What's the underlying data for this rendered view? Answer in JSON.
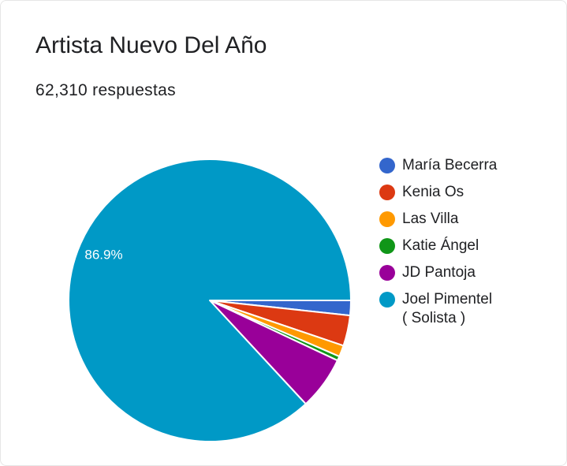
{
  "header": {
    "title": "Artista Nuevo Del Año",
    "responses": "62,310 respuestas"
  },
  "chart_data": {
    "type": "pie",
    "title": "Artista Nuevo Del Año",
    "legend_position": "right",
    "slices": [
      {
        "label": "María Becerra",
        "value": 1.7,
        "color": "#3366cc"
      },
      {
        "label": "Kenia Os",
        "value": 3.5,
        "color": "#dc3912"
      },
      {
        "label": "Las Villa",
        "value": 1.3,
        "color": "#ff9900"
      },
      {
        "label": "Katie Ángel",
        "value": 0.5,
        "color": "#109618"
      },
      {
        "label": "JD Pantoja",
        "value": 6.1,
        "color": "#990099"
      },
      {
        "label": "Joel Pimentel\n( Solista )",
        "value": 86.9,
        "color": "#0099c6"
      }
    ],
    "data_labels": [
      {
        "slice": 5,
        "text": "86.9%"
      }
    ]
  }
}
